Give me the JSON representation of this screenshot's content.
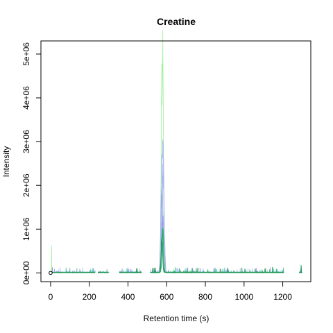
{
  "chart_data": {
    "type": "line",
    "title": "Creatine",
    "xlabel": "Retention time (s)",
    "ylabel": "Intensity",
    "xlim": [
      -50,
      1345
    ],
    "ylim": [
      -200000,
      5300000
    ],
    "x_ticks": [
      0,
      200,
      400,
      600,
      800,
      1000,
      1200
    ],
    "x_tick_labels": [
      "0",
      "200",
      "400",
      "600",
      "800",
      "1000",
      "1200"
    ],
    "y_ticks": [
      0,
      1000000,
      2000000,
      3000000,
      4000000,
      5000000
    ],
    "y_tick_labels": [
      "0e+00",
      "1e+06",
      "2e+06",
      "3e+06",
      "4e+06",
      "5e+06"
    ],
    "grid": false,
    "legend": "none",
    "point_marker": {
      "x": 0,
      "y": 0
    },
    "series": [
      {
        "name": "light green trace",
        "color": "#90ee90",
        "apex_x": 578,
        "apex_y": 5150000,
        "width": 12
      },
      {
        "name": "light blue trace A",
        "color": "#aab4f2",
        "apex_x": 580,
        "apex_y": 3100000,
        "width": 12
      },
      {
        "name": "light blue trace B",
        "color": "#b7c0f5",
        "apex_x": 576,
        "apex_y": 2700000,
        "width": 11
      },
      {
        "name": "light blue trace C",
        "color": "#a3aeea",
        "apex_x": 582,
        "apex_y": 2300000,
        "width": 12
      },
      {
        "name": "light blue trace D",
        "color": "#9aa6e8",
        "apex_x": 574,
        "apex_y": 1900000,
        "width": 10
      },
      {
        "name": "blue trace E",
        "color": "#7f8fe0",
        "apex_x": 579,
        "apex_y": 1200000,
        "width": 10
      },
      {
        "name": "teal trace F",
        "color": "#2fbf9a",
        "apex_x": 577,
        "apex_y": 1050000,
        "width": 9
      },
      {
        "name": "green trace G",
        "color": "#1fa85a",
        "apex_x": 580,
        "apex_y": 950000,
        "width": 9
      },
      {
        "name": "dark green trace H",
        "color": "#178f4a",
        "apex_x": 575,
        "apex_y": 800000,
        "width": 8
      }
    ]
  }
}
